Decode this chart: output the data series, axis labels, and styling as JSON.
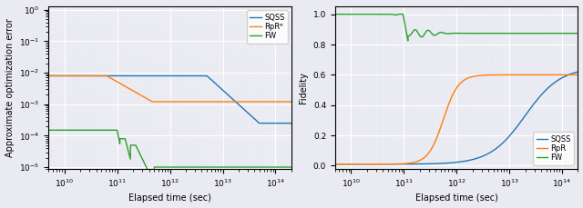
{
  "left": {
    "xlabel": "Elapsed time (sec)",
    "ylabel": "Approximate optimization error",
    "xlim": [
      5000000000.0,
      200000000000000.0
    ],
    "ylim_log": [
      -5.05,
      0.1
    ],
    "xticks_log": [
      10,
      11,
      12,
      13,
      14
    ],
    "yticks_log": [
      -5,
      -4,
      -3,
      -2,
      -1,
      0
    ],
    "colors": {
      "SQSS": "#1f77b4",
      "RpR": "#ff7f0e",
      "FW": "#2ca02c"
    },
    "legend_labels": [
      "SQSS",
      "RpRᴿ",
      "FW"
    ]
  },
  "right": {
    "xlabel": "Elapsed time (sec)",
    "ylabel": "Fidelity",
    "xlim": [
      5000000000.0,
      200000000000000.0
    ],
    "ylim": [
      -0.02,
      1.05
    ],
    "xticks_log": [
      10,
      11,
      12,
      13,
      14
    ],
    "yticks": [
      0.0,
      0.2,
      0.4,
      0.6,
      0.8,
      1.0
    ],
    "colors": {
      "SQSS": "#1f77b4",
      "RpR": "#ff7f0e",
      "FW": "#2ca02c"
    },
    "legend_labels": [
      "SQSS",
      "RpR",
      "FW"
    ]
  },
  "bg_color": "#eaeaf2",
  "grid_color": "white",
  "line_width": 1.0
}
